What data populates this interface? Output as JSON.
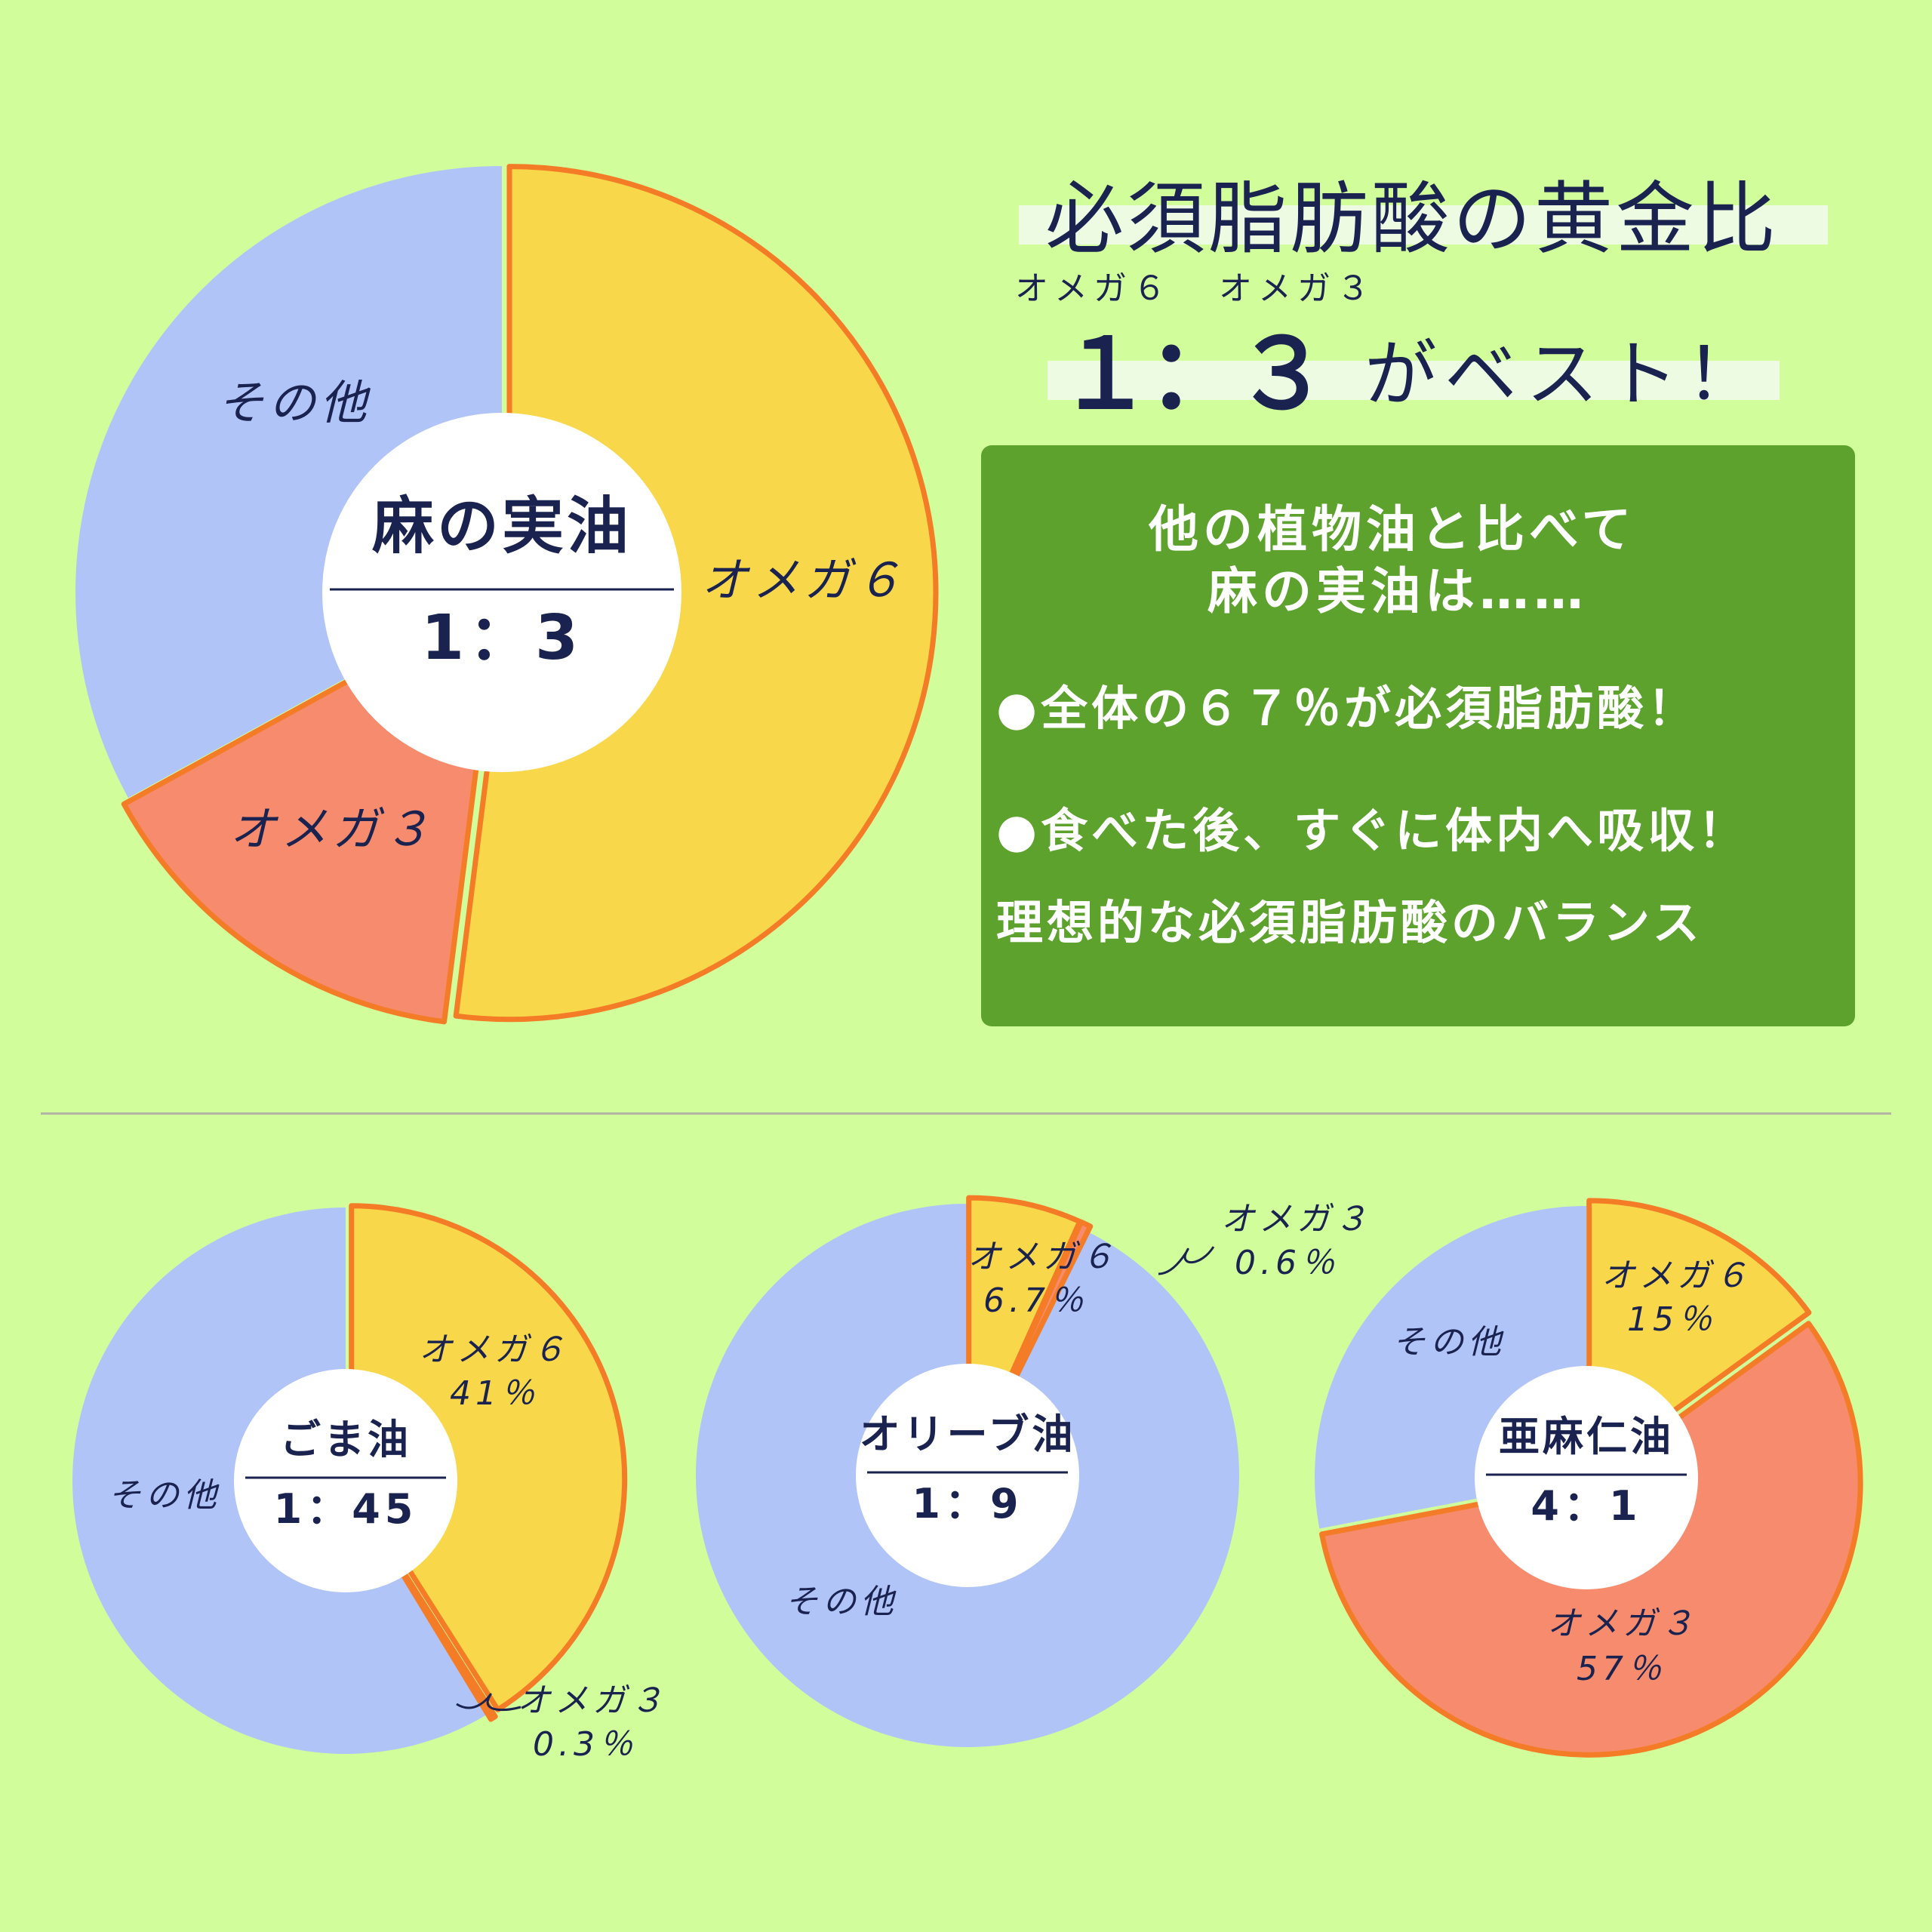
{
  "header": {
    "title": "必須脂肪酸の黄金比",
    "sub_omega6": "オメガ６",
    "sub_omega3": "オメガ３",
    "ratio_1": "１",
    "ratio_colon": "：",
    "ratio_3": "３",
    "ratio_suffix": "がベスト！"
  },
  "panel": {
    "line1": "他の植物油と比べて",
    "line2": "麻の実油は……",
    "bullet1": "●全体の６７％が必須脂肪酸！",
    "bullet2": "●食べた後、すぐに体内へ吸収！",
    "line5": "理想的な必須脂肪酸のバランス"
  },
  "colors": {
    "background": "#d1fd9a",
    "omega6": "#f8d84a",
    "omega3": "#f68b6e",
    "other": "#b1c4f8",
    "outline": "#f47c26",
    "panel": "#5da22d",
    "text": "#1a2350"
  },
  "chart_data": [
    {
      "type": "pie",
      "title": "麻の実油",
      "ratio": "1：3",
      "series": [
        {
          "name": "オメガ６",
          "values": [
            52
          ]
        },
        {
          "name": "オメガ３",
          "values": [
            15
          ]
        },
        {
          "name": "その他",
          "values": [
            33
          ]
        }
      ],
      "slice_labels": {
        "omega6": "オメガ６",
        "omega3": "オメガ３",
        "other": "その他"
      }
    },
    {
      "type": "pie",
      "title": "ごま油",
      "ratio": "1：45",
      "series": [
        {
          "name": "オメガ６",
          "values": [
            41
          ]
        },
        {
          "name": "オメガ３",
          "values": [
            0.3
          ]
        },
        {
          "name": "その他",
          "values": [
            58.7
          ]
        }
      ],
      "slice_labels": {
        "omega6": "オメガ６",
        "omega6_pct": "41％",
        "omega3": "オメガ３",
        "omega3_pct": "0.3％",
        "other": "その他"
      }
    },
    {
      "type": "pie",
      "title": "オリーブ油",
      "ratio": "1：9",
      "series": [
        {
          "name": "オメガ６",
          "values": [
            6.7
          ]
        },
        {
          "name": "オメガ３",
          "values": [
            0.6
          ]
        },
        {
          "name": "その他",
          "values": [
            92.7
          ]
        }
      ],
      "slice_labels": {
        "omega6": "オメガ６",
        "omega6_pct": "6.7％",
        "omega3": "オメガ３",
        "omega3_pct": "0.6％",
        "other": "その他"
      }
    },
    {
      "type": "pie",
      "title": "亜麻仁油",
      "ratio": "4：1",
      "series": [
        {
          "name": "オメガ６",
          "values": [
            15
          ]
        },
        {
          "name": "オメガ３",
          "values": [
            57
          ]
        },
        {
          "name": "その他",
          "values": [
            28
          ]
        }
      ],
      "slice_labels": {
        "omega6": "オメガ６",
        "omega6_pct": "15％",
        "omega3": "オメガ３",
        "omega3_pct": "57％",
        "other": "その他"
      }
    }
  ]
}
